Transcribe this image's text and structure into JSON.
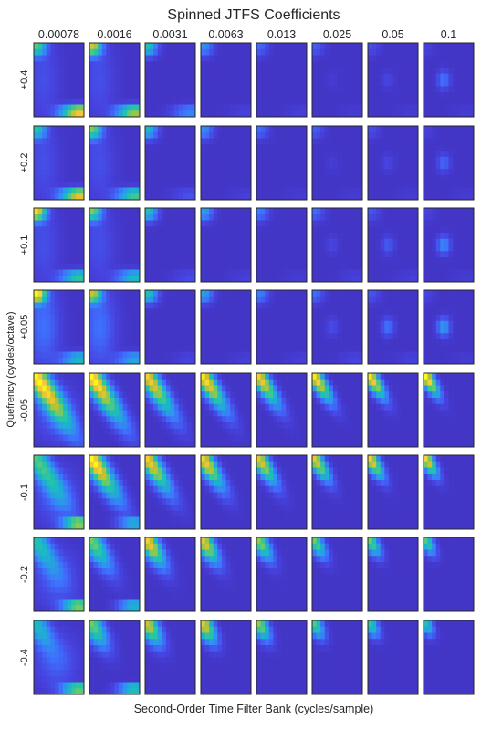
{
  "chart_data": {
    "type": "heatmap",
    "title": "Spinned JTFS Coefficients",
    "xlabel": "Second-Order Time Filter Bank (cycles/sample)",
    "ylabel": "Quefrency (cycles/octave)",
    "column_labels": [
      "0.00078",
      "0.0016",
      "0.0031",
      "0.0063",
      "0.013",
      "0.025",
      "0.05",
      "0.1"
    ],
    "row_labels": [
      "+0.4",
      "+0.2",
      "+0.1",
      "+0.05",
      "-0.05",
      "-0.1",
      "-0.2",
      "-0.4"
    ],
    "colormap": [
      "#3e26a8",
      "#4743e0",
      "#3e71fe",
      "#2b9ae8",
      "#19b7c9",
      "#2bc79e",
      "#7acb5f",
      "#c4c02a",
      "#f5c53a",
      "#f9fb15"
    ],
    "ticks_visible": false,
    "note_values": "Each panel is a 2D coefficient heatmap; intensities are read approximately from the image."
  }
}
